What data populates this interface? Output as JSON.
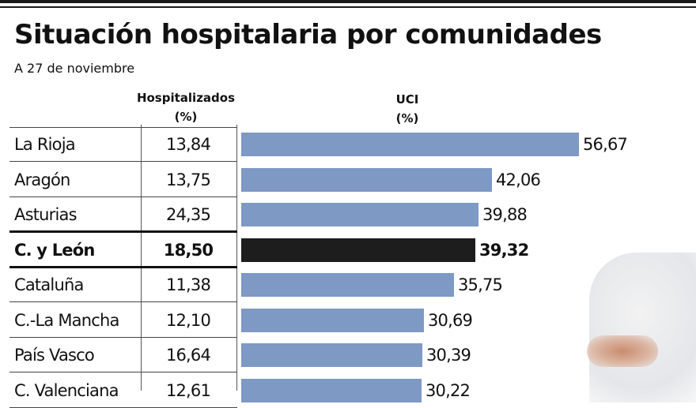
{
  "header": {
    "title": "Situación hospitalaria por comunidades",
    "subtitle": "A 27 de noviembre"
  },
  "columns": {
    "hosp_line1": "Hospitalizados",
    "hosp_line2": "(%)",
    "uci_line1": "UCI",
    "uci_line2": "(%)"
  },
  "colors": {
    "bar": "#7d99c4",
    "highlight_bar": "#1d1d1d"
  },
  "chart_data": {
    "type": "bar",
    "title": "Situación hospitalaria por comunidades",
    "subtitle": "A 27 de noviembre",
    "categories": [
      "La Rioja",
      "Aragón",
      "Asturias",
      "C. y León",
      "Cataluña",
      "C.-La Mancha",
      "País Vasco",
      "C. Valenciana"
    ],
    "series": [
      {
        "name": "Hospitalizados (%)",
        "values": [
          13.84,
          13.75,
          24.35,
          18.5,
          11.38,
          12.1,
          16.64,
          12.61
        ],
        "labels": [
          "13,84",
          "13,75",
          "24,35",
          "18,50",
          "11,38",
          "12,10",
          "16,64",
          "12,61"
        ]
      },
      {
        "name": "UCI (%)",
        "values": [
          56.67,
          42.06,
          39.88,
          39.32,
          35.75,
          30.69,
          30.39,
          30.22
        ],
        "labels": [
          "56,67",
          "42,06",
          "39,88",
          "39,32",
          "35,75",
          "30,69",
          "30,39",
          "30,22"
        ]
      }
    ],
    "highlighted_category": "C. y León",
    "orientation": "horizontal",
    "xlim": [
      0,
      56.67
    ]
  }
}
